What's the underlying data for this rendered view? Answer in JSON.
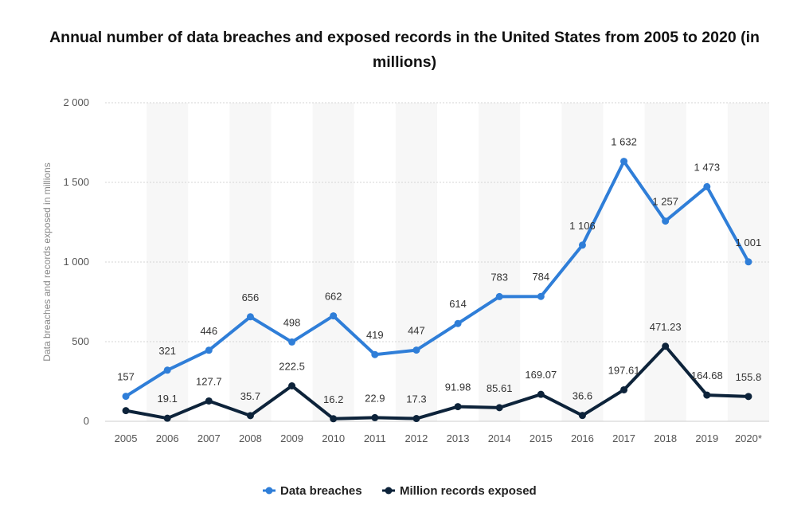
{
  "chart_data": {
    "type": "line",
    "title": "Annual number of data breaches and exposed records in the United States from 2005 to 2020 (in millions)",
    "xlabel": "",
    "ylabel": "Data breaches and records exposed in millions",
    "categories": [
      "2005",
      "2006",
      "2007",
      "2008",
      "2009",
      "2010",
      "2011",
      "2012",
      "2013",
      "2014",
      "2015",
      "2016",
      "2017",
      "2018",
      "2019",
      "2020*"
    ],
    "ylim": [
      0,
      2000
    ],
    "yticks": [
      0,
      500,
      1000,
      1500,
      2000
    ],
    "ytick_labels": [
      "0",
      "500",
      "1 000",
      "1 500",
      "2 000"
    ],
    "grid": true,
    "legend_position": "bottom-center",
    "series": [
      {
        "name": "Data breaches",
        "color": "#2f7ed8",
        "values": [
          157,
          321,
          446,
          656,
          498,
          662,
          419,
          447,
          614,
          783,
          784,
          1106,
          1632,
          1257,
          1473,
          1001
        ],
        "labels": [
          "157",
          "321",
          "446",
          "656",
          "498",
          "662",
          "419",
          "447",
          "614",
          "783",
          "784",
          "1 106",
          "1 632",
          "1 257",
          "1 473",
          "1 001"
        ]
      },
      {
        "name": "Million records exposed",
        "color": "#0d233a",
        "values": [
          66.9,
          19.1,
          127.7,
          35.7,
          222.5,
          16.2,
          22.9,
          17.3,
          91.98,
          85.61,
          169.07,
          36.6,
          197.61,
          471.23,
          164.68,
          155.8
        ],
        "labels": [
          "",
          "19.1",
          "127.7",
          "35.7",
          "222.5",
          "16.2",
          "22.9",
          "17.3",
          "91.98",
          "85.61",
          "169.07",
          "36.6",
          "197.61",
          "471.23",
          "164.68",
          "155.8"
        ]
      }
    ]
  }
}
